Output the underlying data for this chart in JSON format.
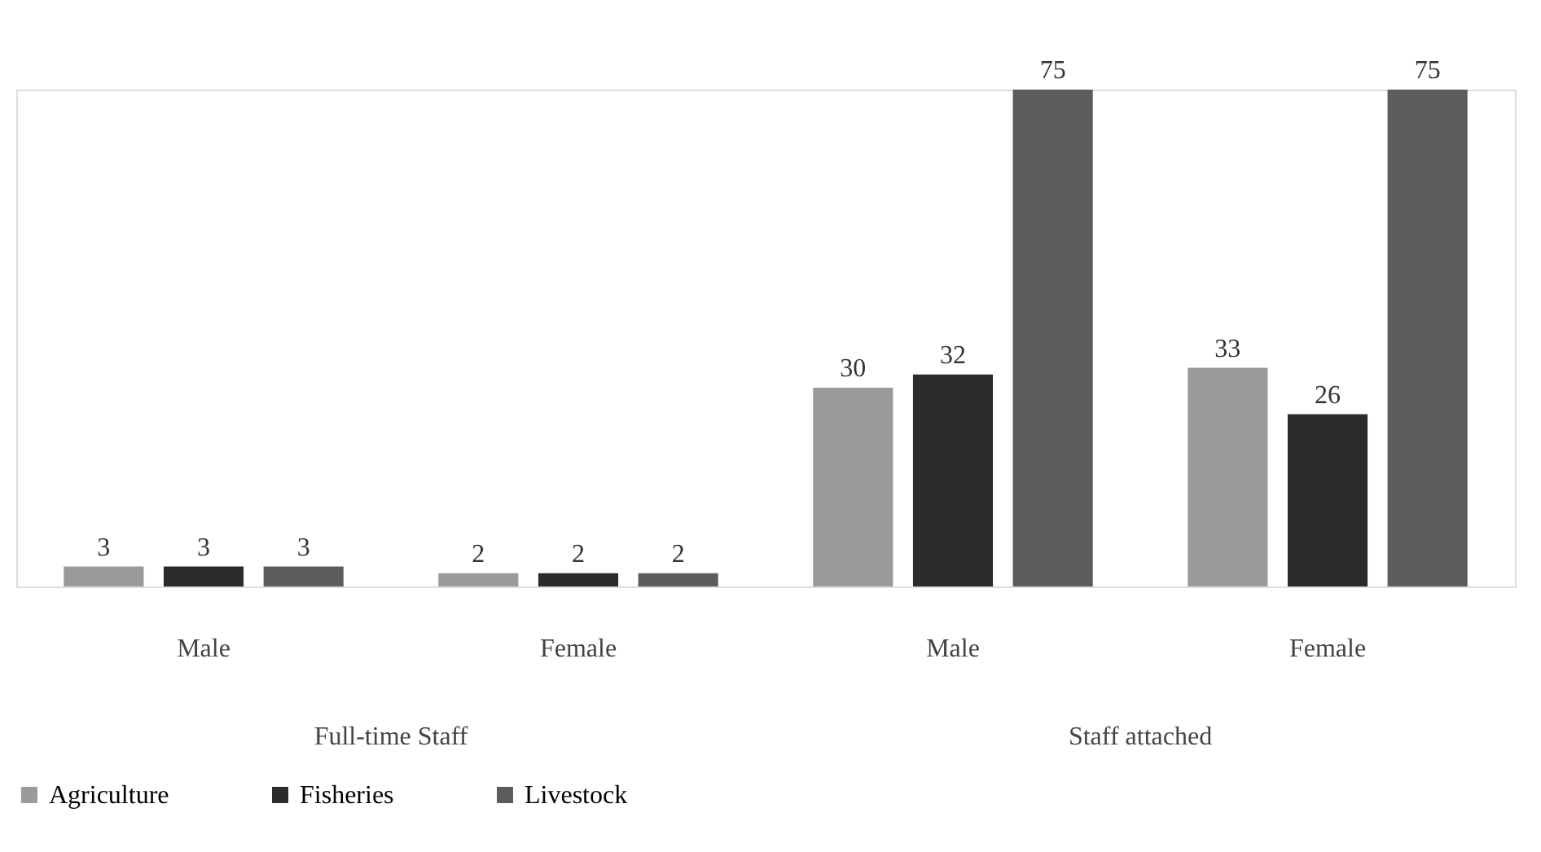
{
  "chart_data": {
    "type": "bar",
    "categories": [
      "Male",
      "Female",
      "Male",
      "Female"
    ],
    "annotations": [
      "Full-time Staff",
      "Staff attached"
    ],
    "series": [
      {
        "name": "Agriculture",
        "color": "#9a9a9a",
        "values": [
          3,
          2,
          30,
          33
        ]
      },
      {
        "name": "Fisheries",
        "color": "#2b2b2b",
        "values": [
          3,
          2,
          32,
          26
        ]
      },
      {
        "name": "Livestock",
        "color": "#5c5c5c",
        "values": [
          3,
          2,
          75,
          75
        ]
      }
    ],
    "data_labels": true,
    "legend": "bottom",
    "grid": false
  }
}
